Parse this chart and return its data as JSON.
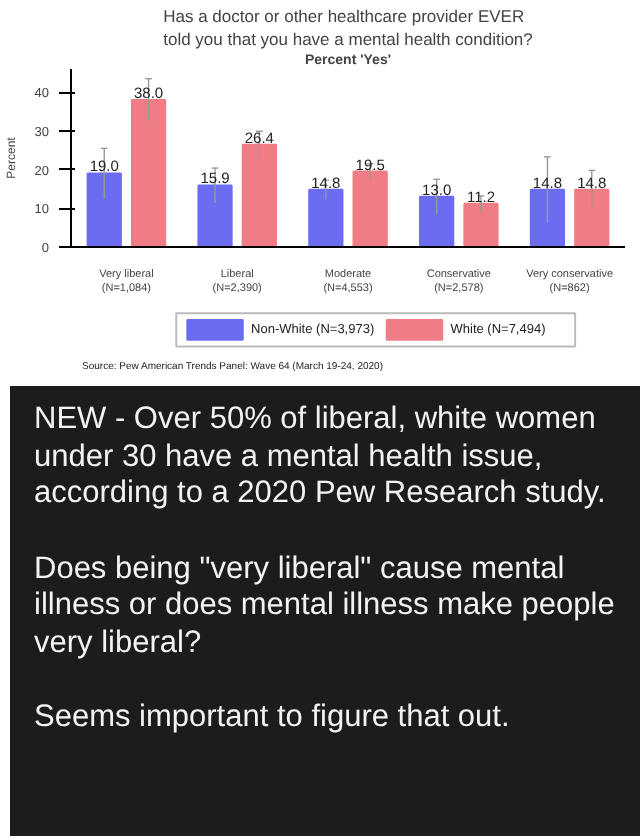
{
  "chart_data": {
    "type": "bar",
    "title": "Has a doctor or other healthcare provider EVER\ntold you that you have a mental health condition?",
    "subtitle": "Percent 'Yes'",
    "ylabel": "Percent",
    "categories": [
      "Very liberal\n(N=1,084)",
      "Liberal\n(N=2,390)",
      "Moderate\n(N=4,553)",
      "Conservative\n(N=2,578)",
      "Very conservative\n(N=862)"
    ],
    "series": [
      {
        "name": "Non-White (N=3,973)",
        "color": "#6b6cf0",
        "values": [
          19.0,
          15.9,
          14.8,
          13.0,
          14.8
        ],
        "value_labels": [
          "19.0",
          "15.9",
          "14.8",
          "13.0",
          "14.8"
        ],
        "errors": [
          6.5,
          4.5,
          2.5,
          4.5,
          8.5
        ]
      },
      {
        "name": "White (N=7,494)",
        "color": "#f07c86",
        "values": [
          38.0,
          26.4,
          19.5,
          11.2,
          14.8
        ],
        "value_labels": [
          "38.0",
          "26.4",
          "19.5",
          "11.2",
          "14.8"
        ],
        "errors": [
          5.5,
          3.5,
          2.0,
          2.0,
          5.0
        ]
      }
    ],
    "ylim": [
      0,
      46
    ],
    "yticks": [
      0,
      10,
      20,
      30,
      40
    ],
    "grid": false,
    "legend": "bottom",
    "annotations": [
      "Source: Pew American Trends Panel: Wave 64 (March 19-24, 2020)",
      "NEW - Over 50% of liberal, white women under 30 have a mental health issue, according to a 2020 Pew Research study.",
      "Does being \"very liberal\" cause mental illness or does mental illness make people very liberal?",
      "Seems important to figure that out."
    ]
  }
}
